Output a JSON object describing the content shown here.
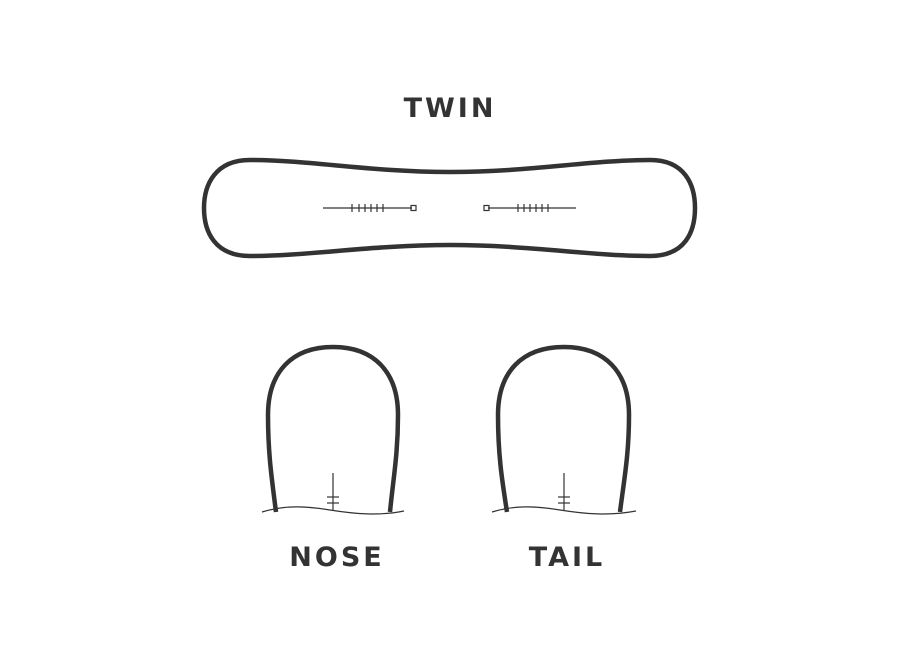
{
  "title": "TWIN",
  "panels": {
    "nose": {
      "label": "NOSE"
    },
    "tail": {
      "label": "TAIL"
    }
  },
  "colors": {
    "outline": "#333333",
    "background": "#ffffff"
  },
  "icons": {
    "board": "snowboard-top-view-icon",
    "nose": "snowboard-nose-shape-icon",
    "tail": "snowboard-tail-shape-icon"
  }
}
